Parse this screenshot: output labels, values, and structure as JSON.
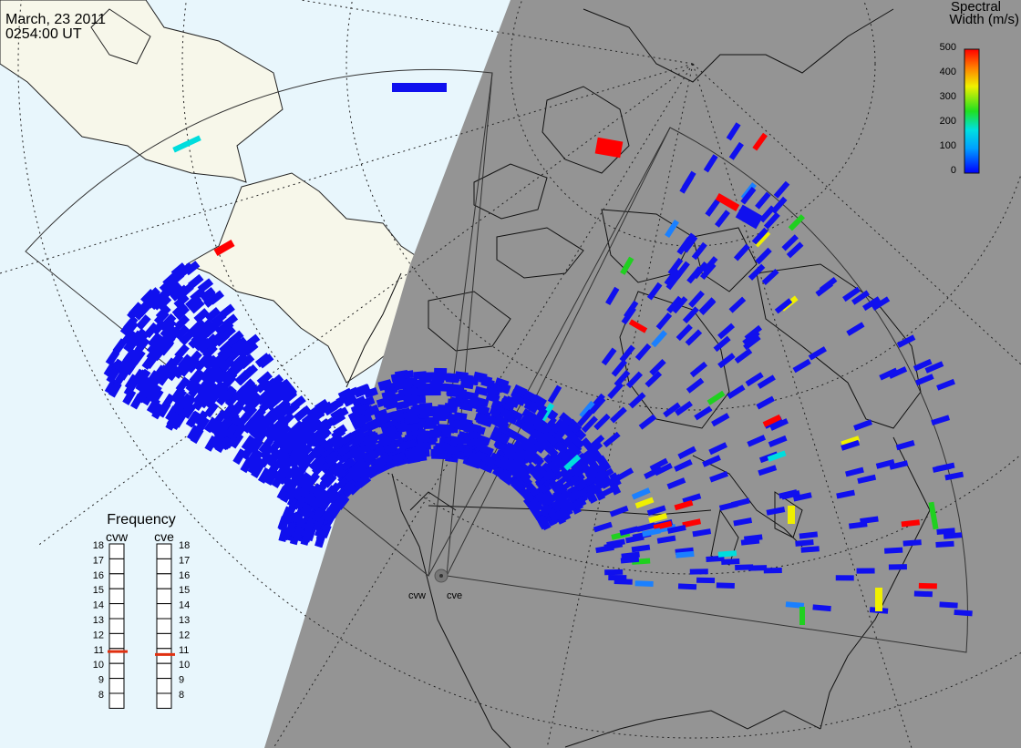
{
  "header": {
    "date": "March, 23 2011",
    "time": "0254:00 UT"
  },
  "colorbar": {
    "title_line1": "Spectral",
    "title_line2": "Width (m/s)",
    "ticks": [
      "500",
      "400",
      "300",
      "200",
      "100",
      "0"
    ]
  },
  "frequency_panel": {
    "title": "Frequency",
    "radars": [
      {
        "name": "cvw",
        "value_mhz": 10.8
      },
      {
        "name": "cve",
        "value_mhz": 10.6
      }
    ],
    "scale": [
      "18",
      "17",
      "16",
      "15",
      "14",
      "13",
      "12",
      "11",
      "10",
      "9",
      "8"
    ]
  },
  "radar_sites": [
    {
      "label": "cvw"
    },
    {
      "label": "cve"
    }
  ],
  "colors": {
    "ocean": "#e8f6fc",
    "land_sunlit": "#f7f7ea",
    "night_shade": "#949494",
    "data_blue": "#1010ee",
    "frequency_marker": "#e03010"
  }
}
